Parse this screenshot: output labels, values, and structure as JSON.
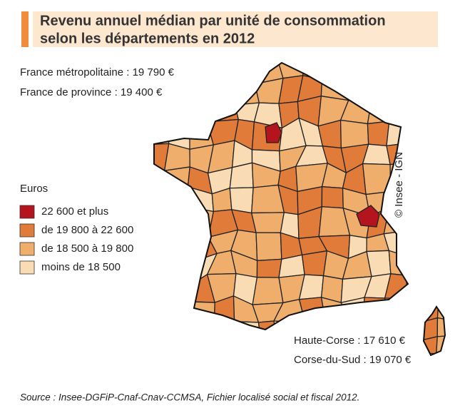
{
  "header": {
    "title_lines": [
      "Revenu annuel médian par unité de consommation",
      "selon les départements en 2012"
    ]
  },
  "stats": [
    "France métropolitaine : 19 790 €",
    "France de province : 19 400 €"
  ],
  "legend": {
    "title": "Euros",
    "items": [
      {
        "label": "22 600 et plus",
        "color": "#b4141e"
      },
      {
        "label": "de 19 800 à 22 600",
        "color": "#e07b39"
      },
      {
        "label": "de 18 500 à 19 800",
        "color": "#efae6c"
      },
      {
        "label": "moins de 18 500",
        "color": "#f9dcb4"
      }
    ]
  },
  "credit": "© Insee - IGN",
  "corsica": [
    "Haute-Corse : 17 610 €",
    "Corse-du-Sud : 19 070 €"
  ],
  "source": "Source : Insee-DGFiP-Cnaf-Cnav-CCMSA, Fichier localisé social et fiscal 2012."
}
